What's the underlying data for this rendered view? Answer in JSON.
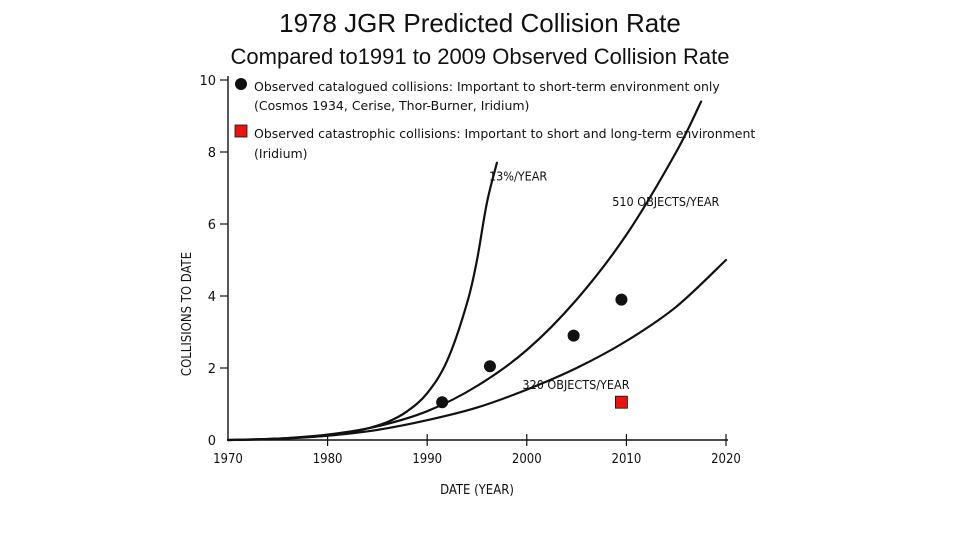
{
  "title": "1978 JGR Predicted Collision Rate",
  "subtitle": "Compared to1991 to 2009 Observed Collision Rate",
  "chart_data": {
    "type": "line",
    "xlabel": "DATE (YEAR)",
    "ylabel": "COLLISIONS TO DATE",
    "xlim": [
      1970,
      2020
    ],
    "ylim": [
      0,
      10
    ],
    "x_ticks": [
      "1970",
      "1980",
      "1990",
      "2000",
      "2010",
      "2020"
    ],
    "y_ticks": [
      "0",
      "2",
      "4",
      "6",
      "8",
      "10"
    ],
    "grid": false,
    "series": [
      {
        "name": "13%/YEAR",
        "x": [
          1970,
          1975,
          1980,
          1983,
          1986,
          1988,
          1990,
          1992,
          1994,
          1995,
          1996,
          1997
        ],
        "y": [
          0,
          0.03,
          0.12,
          0.25,
          0.5,
          0.8,
          1.3,
          2.2,
          3.8,
          5.0,
          6.6,
          7.7
        ]
      },
      {
        "name": "510 OBJECTS/YEAR",
        "x": [
          1970,
          1975,
          1980,
          1985,
          1990,
          1995,
          2000,
          2005,
          2010,
          2015,
          2017.5
        ],
        "y": [
          0,
          0.04,
          0.15,
          0.38,
          0.8,
          1.5,
          2.5,
          3.9,
          5.7,
          8.0,
          9.4
        ]
      },
      {
        "name": "320 OBJECTS/YEAR",
        "x": [
          1970,
          1975,
          1980,
          1985,
          1990,
          1995,
          2000,
          2005,
          2010,
          2015,
          2020
        ],
        "y": [
          0,
          0.04,
          0.12,
          0.28,
          0.55,
          0.9,
          1.4,
          2.0,
          2.75,
          3.7,
          5.0
        ]
      }
    ],
    "observed_catalogued": [
      {
        "x": 1991.5,
        "y": 1.05
      },
      {
        "x": 1996.3,
        "y": 2.05
      },
      {
        "x": 2004.7,
        "y": 2.9
      },
      {
        "x": 2009.5,
        "y": 3.9
      }
    ],
    "observed_catastrophic": [
      {
        "x": 2009.5,
        "y": 1.05
      }
    ]
  },
  "legend": {
    "catalogued_line1": "Observed catalogued collisions: Important to short-term environment only",
    "catalogued_line2": "(Cosmos 1934, Cerise, Thor-Burner, Iridium)",
    "catastrophic_line1": "Observed catastrophic collisions: Important to short and long-term environment",
    "catastrophic_line2": "(Iridium)",
    "marker_color_catalogued": "#111111",
    "marker_color_catastrophic": "#e8150f"
  }
}
